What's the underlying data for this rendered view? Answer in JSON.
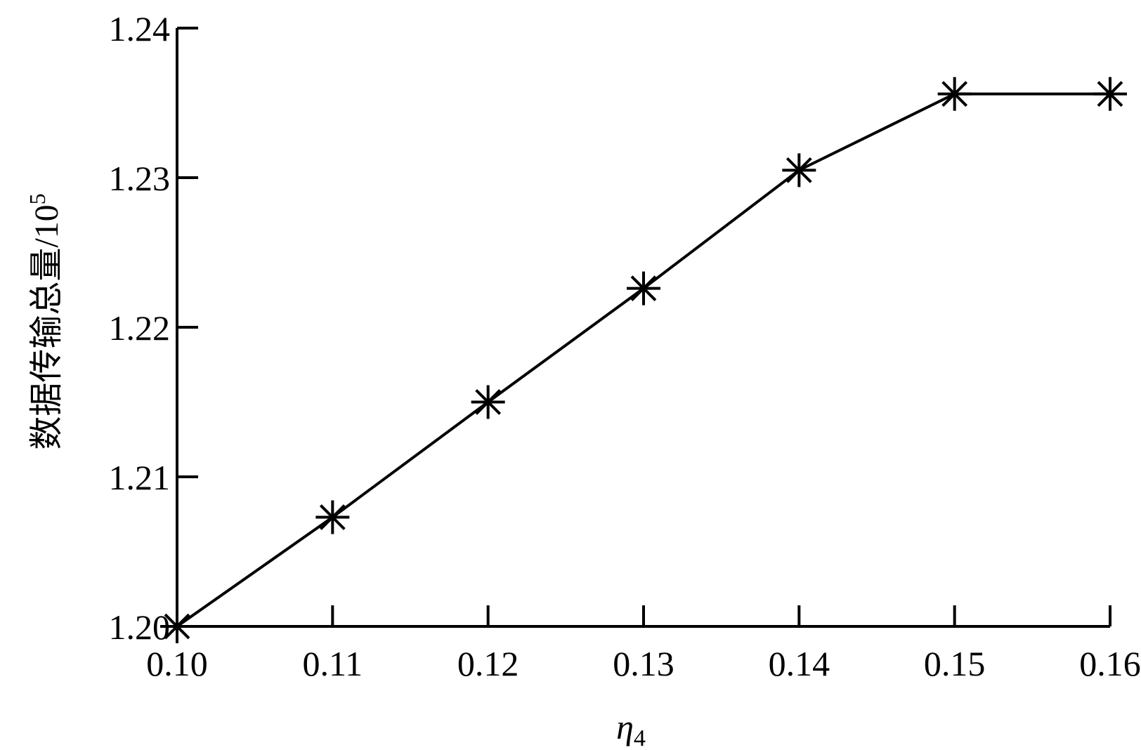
{
  "chart_data": {
    "type": "line",
    "title": "",
    "xlabel": "η",
    "xlabel_sub": "4",
    "ylabel": "数据传输总量/10",
    "ylabel_sup": "5",
    "x": [
      0.1,
      0.11,
      0.12,
      0.13,
      0.14,
      0.15,
      0.16
    ],
    "x_tick_labels": [
      "0.10",
      "0.11",
      "0.12",
      "0.13",
      "0.14",
      "0.15",
      "0.16"
    ],
    "y_ticks": [
      1.2,
      1.21,
      1.22,
      1.23,
      1.24
    ],
    "y_tick_labels": [
      "1.20",
      "1.21",
      "1.22",
      "1.23",
      "1.24"
    ],
    "xlim": [
      0.1,
      0.16
    ],
    "ylim": [
      1.2,
      1.24
    ],
    "series": [
      {
        "values": [
          1.2,
          1.2073,
          1.215,
          1.2226,
          1.2305,
          1.2356,
          1.2356
        ],
        "marker": "asterisk",
        "color": "#000000"
      }
    ],
    "grid": false,
    "legend": "none"
  }
}
